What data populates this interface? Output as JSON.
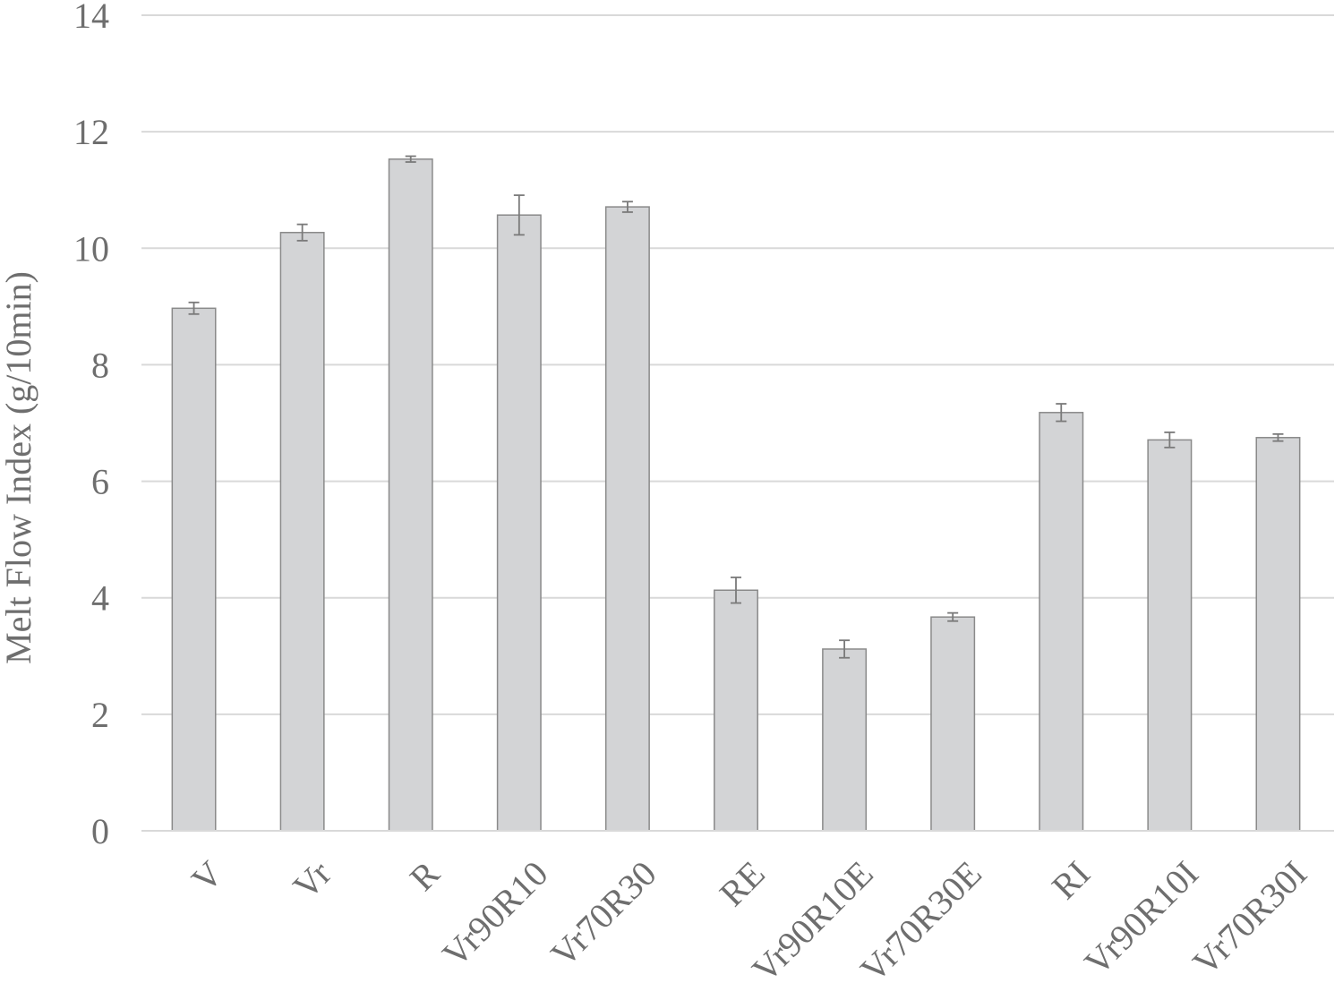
{
  "chart_data": {
    "type": "bar",
    "title": "",
    "xlabel": "",
    "ylabel": "Melt Flow Index (g/10min)",
    "ylim": [
      0,
      14
    ],
    "yticks": [
      0,
      2,
      4,
      6,
      8,
      10,
      12,
      14
    ],
    "grid": true,
    "legend": "none",
    "colors": {
      "bar_fill": "#d3d4d6",
      "bar_stroke": "#8a8a8a",
      "grid": "#d9d9d9",
      "error_bar": "#7a7a7a",
      "text": "#6e6e6e"
    },
    "categories": [
      "V",
      "Vr",
      "R",
      "Vr90R10",
      "Vr70R30",
      "RE",
      "Vr90R10E",
      "Vr70R30E",
      "RI",
      "Vr90R10I",
      "Vr70R30I"
    ],
    "values": [
      8.97,
      10.27,
      11.53,
      10.57,
      10.71,
      4.13,
      3.12,
      3.67,
      7.18,
      6.71,
      6.75
    ],
    "errors": [
      0.1,
      0.14,
      0.05,
      0.34,
      0.09,
      0.22,
      0.15,
      0.07,
      0.15,
      0.13,
      0.06
    ]
  }
}
